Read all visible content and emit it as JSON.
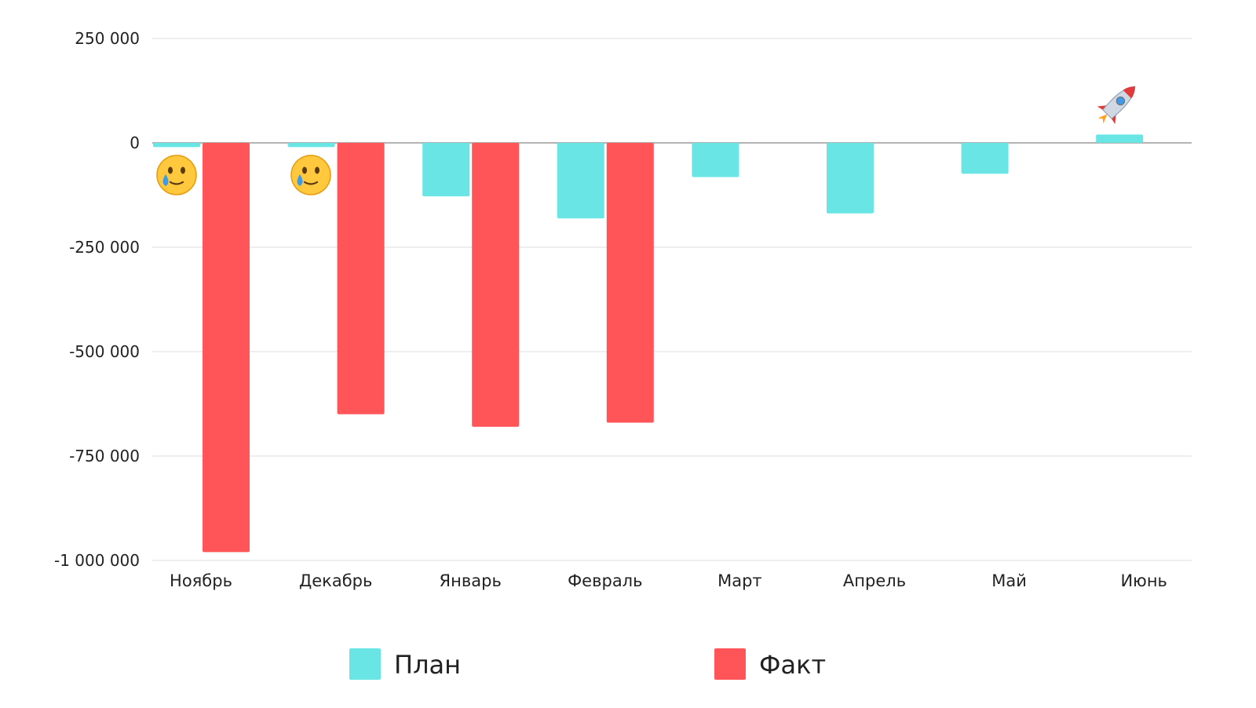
{
  "chart_data": {
    "type": "bar",
    "categories": [
      "Ноябрь",
      "Декабрь",
      "Январь",
      "Февраль",
      "Март",
      "Апрель",
      "Май",
      "Июнь"
    ],
    "series": [
      {
        "name": "План",
        "color": "#69E5E6",
        "values": [
          -10000,
          -10000,
          -128000,
          -181000,
          -82000,
          -169000,
          -74000,
          20000
        ]
      },
      {
        "name": "Факт",
        "color": "#FF5558",
        "values": [
          -980000,
          -650000,
          -680000,
          -670000,
          null,
          null,
          null,
          null
        ]
      }
    ],
    "ylim": [
      -1000000,
      250000
    ],
    "yticks": [
      250000,
      0,
      -250000,
      -500000,
      -750000,
      -1000000
    ],
    "ytick_labels": [
      "250 000",
      "0",
      "-250 000",
      "-500 000",
      "-750 000",
      "-1 000 000"
    ],
    "grid": true,
    "legend_position": "bottom",
    "annotations": [
      {
        "category": "Ноябрь",
        "icon": "crying-smile-emoji"
      },
      {
        "category": "Декабрь",
        "icon": "crying-smile-emoji"
      },
      {
        "category": "Июнь",
        "icon": "rocket-emoji"
      }
    ]
  }
}
